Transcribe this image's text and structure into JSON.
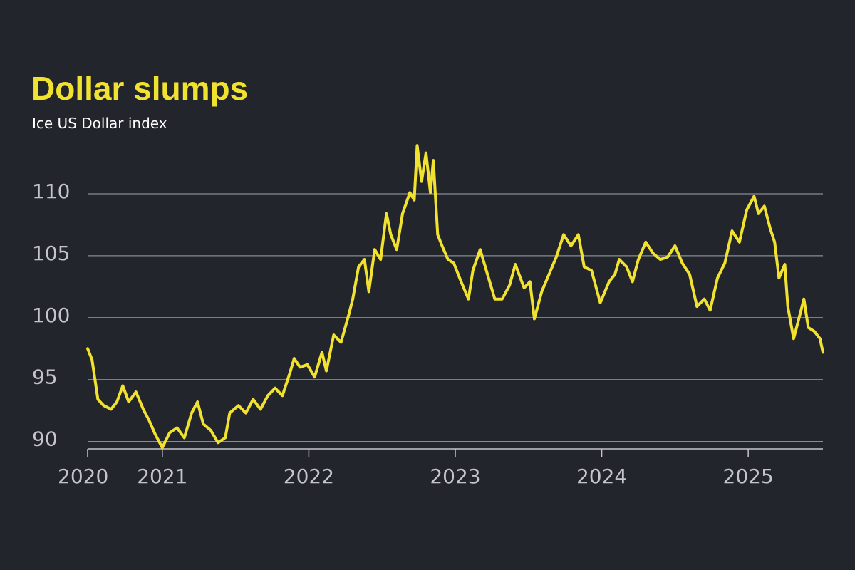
{
  "chart_data": {
    "type": "line",
    "title": "Dollar slumps",
    "subtitle": "Ice US Dollar index",
    "x": [
      2020.49,
      2020.52,
      2020.56,
      2020.6,
      2020.65,
      2020.69,
      2020.73,
      2020.77,
      2020.82,
      2020.87,
      2020.91,
      2020.95,
      2021.0,
      2021.05,
      2021.1,
      2021.15,
      2021.2,
      2021.24,
      2021.28,
      2021.33,
      2021.38,
      2021.43,
      2021.46,
      2021.52,
      2021.57,
      2021.62,
      2021.67,
      2021.72,
      2021.77,
      2021.82,
      2021.87,
      2021.9,
      2021.94,
      2021.99,
      2022.04,
      2022.09,
      2022.12,
      2022.17,
      2022.22,
      2022.27,
      2022.3,
      2022.34,
      2022.38,
      2022.41,
      2022.45,
      2022.49,
      2022.53,
      2022.56,
      2022.6,
      2022.64,
      2022.69,
      2022.72,
      2022.74,
      2022.77,
      2022.8,
      2022.83,
      2022.85,
      2022.88,
      2022.91,
      2022.95,
      2022.99,
      2023.04,
      2023.09,
      2023.12,
      2023.17,
      2023.22,
      2023.27,
      2023.32,
      2023.37,
      2023.41,
      2023.47,
      2023.51,
      2023.54,
      2023.59,
      2023.64,
      2023.69,
      2023.74,
      2023.79,
      2023.84,
      2023.88,
      2023.93,
      2023.99,
      2024.05,
      2024.09,
      2024.12,
      2024.17,
      2024.21,
      2024.25,
      2024.3,
      2024.35,
      2024.4,
      2024.45,
      2024.5,
      2024.55,
      2024.6,
      2024.65,
      2024.7,
      2024.74,
      2024.79,
      2024.84,
      2024.89,
      2024.94,
      2024.99,
      2025.04,
      2025.07,
      2025.11,
      2025.15,
      2025.18,
      2025.21,
      2025.25,
      2025.27,
      2025.31,
      2025.35,
      2025.38,
      2025.41,
      2025.45,
      2025.49,
      2025.51
    ],
    "series": [
      {
        "color": "#f2e230",
        "values": [
          97.5,
          96.6,
          93.4,
          92.9,
          92.6,
          93.2,
          94.5,
          93.2,
          94.0,
          92.6,
          91.7,
          90.6,
          89.5,
          90.7,
          91.1,
          90.3,
          92.3,
          93.2,
          91.4,
          90.9,
          89.9,
          90.3,
          92.3,
          92.9,
          92.3,
          93.4,
          92.6,
          93.7,
          94.3,
          93.7,
          95.5,
          96.7,
          96.0,
          96.2,
          95.2,
          97.2,
          95.7,
          98.6,
          98.0,
          100.1,
          101.5,
          104.1,
          104.7,
          102.1,
          105.5,
          104.7,
          108.4,
          106.7,
          105.5,
          108.4,
          110.1,
          109.5,
          113.9,
          111.0,
          113.3,
          110.1,
          112.7,
          106.7,
          105.8,
          104.7,
          104.4,
          102.9,
          101.5,
          103.8,
          105.5,
          103.5,
          101.5,
          101.5,
          102.6,
          104.3,
          102.4,
          102.9,
          99.9,
          102.1,
          103.5,
          104.9,
          106.7,
          105.8,
          106.7,
          104.1,
          103.8,
          101.2,
          102.9,
          103.5,
          104.7,
          104.1,
          102.9,
          104.7,
          106.1,
          105.2,
          104.7,
          104.9,
          105.8,
          104.4,
          103.5,
          100.9,
          101.5,
          100.6,
          103.2,
          104.4,
          107.0,
          106.1,
          108.7,
          109.8,
          108.4,
          109.0,
          107.2,
          106.1,
          103.2,
          104.3,
          100.9,
          98.3,
          100.1,
          101.5,
          99.2,
          98.9,
          98.3,
          97.2
        ]
      }
    ],
    "xlim": [
      2020.49,
      2025.51
    ],
    "xticks": [
      {
        "value": 2020.49,
        "label": "2020"
      },
      2021,
      2022,
      2023,
      2024,
      2025
    ],
    "ylim": [
      89.4,
      114.2
    ],
    "yticks": [
      90,
      95,
      100,
      105,
      110
    ],
    "grid": true
  }
}
